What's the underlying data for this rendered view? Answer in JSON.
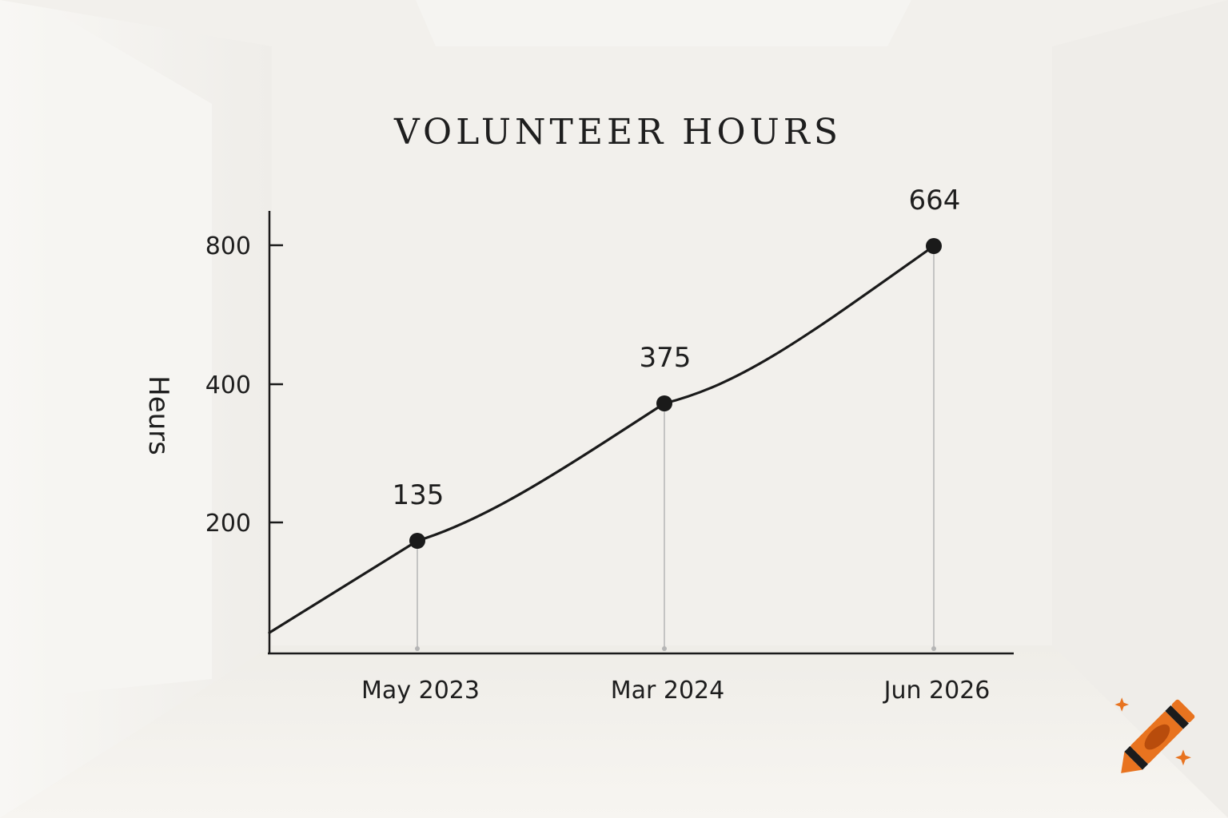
{
  "chart_data": {
    "type": "line",
    "title": "VOLUNTEER HOURS",
    "xlabel": "",
    "ylabel": "Hеurs",
    "x_tick_labels": [
      "May 2023",
      "Mar 2024",
      "Jun 2026"
    ],
    "y_ticks": [
      200,
      400,
      800
    ],
    "grid": false,
    "legend": "none",
    "series": [
      {
        "points": [
          {
            "x": "May 2023",
            "y": 135
          },
          {
            "x": "Mar 2024",
            "y": 375
          },
          {
            "x": "Jun 2026",
            "y": 664
          }
        ]
      }
    ],
    "colors": {
      "line": "#1a1a1a",
      "drop_line": "#b5b5b5",
      "axis": "#1a1a1a"
    }
  },
  "logo": {
    "icon": "crayon-icon",
    "colors": {
      "body": "#e8731f",
      "dark": "#1c1c1c",
      "spark": "#e8731f"
    }
  }
}
